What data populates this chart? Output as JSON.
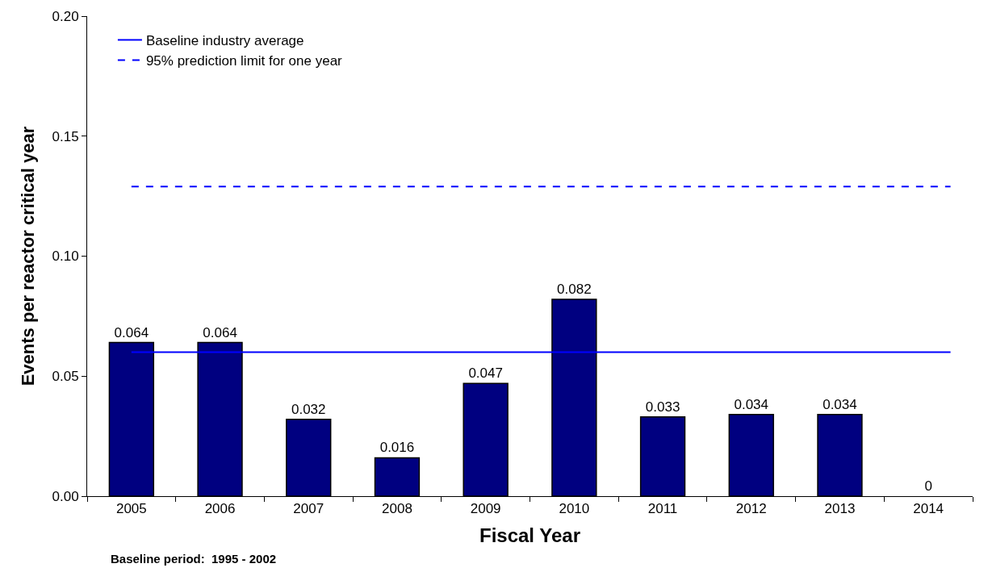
{
  "chart_data": {
    "type": "bar",
    "xlabel": "Fiscal Year",
    "ylabel": "Events per reactor critical year",
    "categories": [
      "2005",
      "2006",
      "2007",
      "2008",
      "2009",
      "2010",
      "2011",
      "2012",
      "2013",
      "2014"
    ],
    "values": [
      0.064,
      0.064,
      0.032,
      0.016,
      0.047,
      0.082,
      0.033,
      0.034,
      0.034,
      0
    ],
    "color": "#000080",
    "data_labels": true,
    "ylim": [
      0,
      0.2
    ],
    "yticks": [
      {
        "value": 0,
        "label": "0.00"
      },
      {
        "value": 0.05,
        "label": "0.05"
      },
      {
        "value": 0.1,
        "label": "0.10"
      },
      {
        "value": 0.15,
        "label": "0.15"
      },
      {
        "value": 0.2,
        "label": "0.20"
      }
    ],
    "ref_lines": [
      {
        "axis": "y",
        "value": 0.06,
        "label": "Baseline industry average",
        "color": "#0000ff",
        "line_style": "solid"
      },
      {
        "axis": "y",
        "value": 0.129,
        "label": "95% prediction limit for one year",
        "color": "#0000ff",
        "line_style": "dashed"
      }
    ],
    "legend": "top left",
    "annotations": [
      "Baseline period:  1995 - 2002"
    ]
  }
}
